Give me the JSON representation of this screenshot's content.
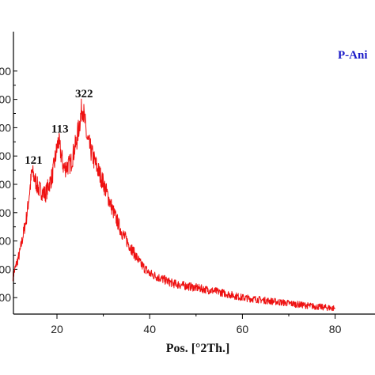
{
  "chart_data": {
    "type": "line",
    "title": "",
    "xlabel": "Pos. [°2Th.]",
    "ylabel": "",
    "xlim": [
      10,
      90
    ],
    "ylim": [
      0,
      9
    ],
    "x_ticks": [
      20,
      40,
      60,
      80
    ],
    "x_tick_labels": [
      "20",
      "40",
      "60",
      "80"
    ],
    "y_tick_labels": [
      "00",
      "00",
      "00",
      "00",
      "00",
      "00",
      "00",
      "00",
      "00"
    ],
    "grid": false,
    "legend": {
      "text": "P-Ani",
      "position": "top-right",
      "color": "#1a1ac8"
    },
    "series": [
      {
        "color": "#ee1111",
        "x": [
          10.5,
          12,
          13.5,
          14.6,
          16,
          17.5,
          19,
          20.3,
          21.5,
          23,
          24.2,
          25.5,
          26.5,
          28,
          30,
          32,
          34,
          36,
          38,
          40,
          45,
          50,
          55,
          60,
          65,
          70,
          75,
          80
        ],
        "y": [
          1.75,
          2.6,
          3.9,
          5.45,
          4.85,
          4.65,
          5.3,
          6.55,
          5.55,
          5.75,
          6.5,
          7.8,
          6.6,
          5.85,
          5.05,
          4.1,
          3.3,
          2.75,
          2.2,
          1.85,
          1.5,
          1.35,
          1.2,
          1.0,
          0.9,
          0.8,
          0.7,
          0.62
        ]
      }
    ],
    "annotations": [
      {
        "text": "121",
        "x": 14.6,
        "y": 5.45
      },
      {
        "text": "113",
        "x": 20.3,
        "y": 6.55
      },
      {
        "text": "322",
        "x": 25.5,
        "y": 7.8
      }
    ]
  },
  "colors": {
    "axis": "#000000",
    "series": "#ee1111",
    "legend": "#1a1ac8"
  }
}
